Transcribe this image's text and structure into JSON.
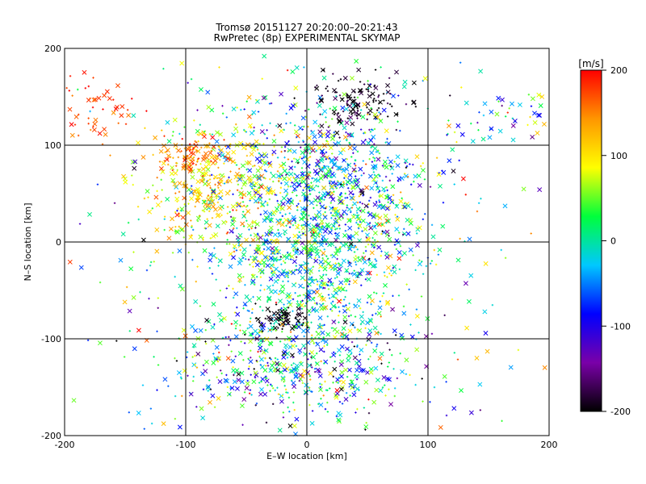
{
  "chart_data": {
    "type": "scatter",
    "title": "Tromsø 20151127 20:20:00–20:21:43",
    "subtitle": "RwPretec (8p) EXPERIMENTAL SKYMAP",
    "xlabel": "E–W location [km]",
    "ylabel": "N–S location [km]",
    "xlim": [
      -200,
      200
    ],
    "ylim": [
      -200,
      200
    ],
    "xticks": [
      -200,
      -100,
      0,
      100,
      200
    ],
    "yticks": [
      -200,
      -100,
      0,
      100,
      200
    ],
    "grid": true,
    "colorbar": {
      "label": "[m/s]",
      "min": -200,
      "max": 200,
      "ticks": [
        200,
        100,
        0,
        -100,
        -200
      ],
      "colormap": [
        "#000000",
        "#7a00a8",
        "#0000ff",
        "#00c8ff",
        "#00ff3c",
        "#ffff00",
        "#ff9600",
        "#ff0000"
      ],
      "position": "right"
    },
    "markers": [
      "x",
      "+"
    ],
    "clusters": [
      {
        "cx": 0,
        "cy": 40,
        "sx": 55,
        "sy": 55,
        "n": 900,
        "v": 20,
        "vs": 70
      },
      {
        "cx": 0,
        "cy": -40,
        "sx": 35,
        "sy": 45,
        "n": 500,
        "v": 0,
        "vs": 60
      },
      {
        "cx": -10,
        "cy": -130,
        "sx": 55,
        "sy": 30,
        "n": 450,
        "v": -30,
        "vs": 90
      },
      {
        "cx": -75,
        "cy": 60,
        "sx": 30,
        "sy": 30,
        "n": 300,
        "v": 110,
        "vs": 35
      },
      {
        "cx": -95,
        "cy": 90,
        "sx": 15,
        "sy": 10,
        "n": 80,
        "v": 160,
        "vs": 25
      },
      {
        "cx": -180,
        "cy": 135,
        "sx": 25,
        "sy": 18,
        "n": 70,
        "v": 180,
        "vs": 20
      },
      {
        "cx": 45,
        "cy": 145,
        "sx": 20,
        "sy": 15,
        "n": 120,
        "v": -190,
        "vs": 15
      },
      {
        "cx": 30,
        "cy": 60,
        "sx": 30,
        "sy": 40,
        "n": 300,
        "v": -60,
        "vs": 60
      },
      {
        "cx": 170,
        "cy": 130,
        "sx": 30,
        "sy": 15,
        "n": 60,
        "v": -20,
        "vs": 90
      },
      {
        "cx": -20,
        "cy": -80,
        "sx": 10,
        "sy": 8,
        "n": 60,
        "v": -200,
        "vs": 8
      },
      {
        "cx": 0,
        "cy": 0,
        "sx": 140,
        "sy": 130,
        "n": 350,
        "v": 0,
        "vs": 110
      }
    ]
  }
}
